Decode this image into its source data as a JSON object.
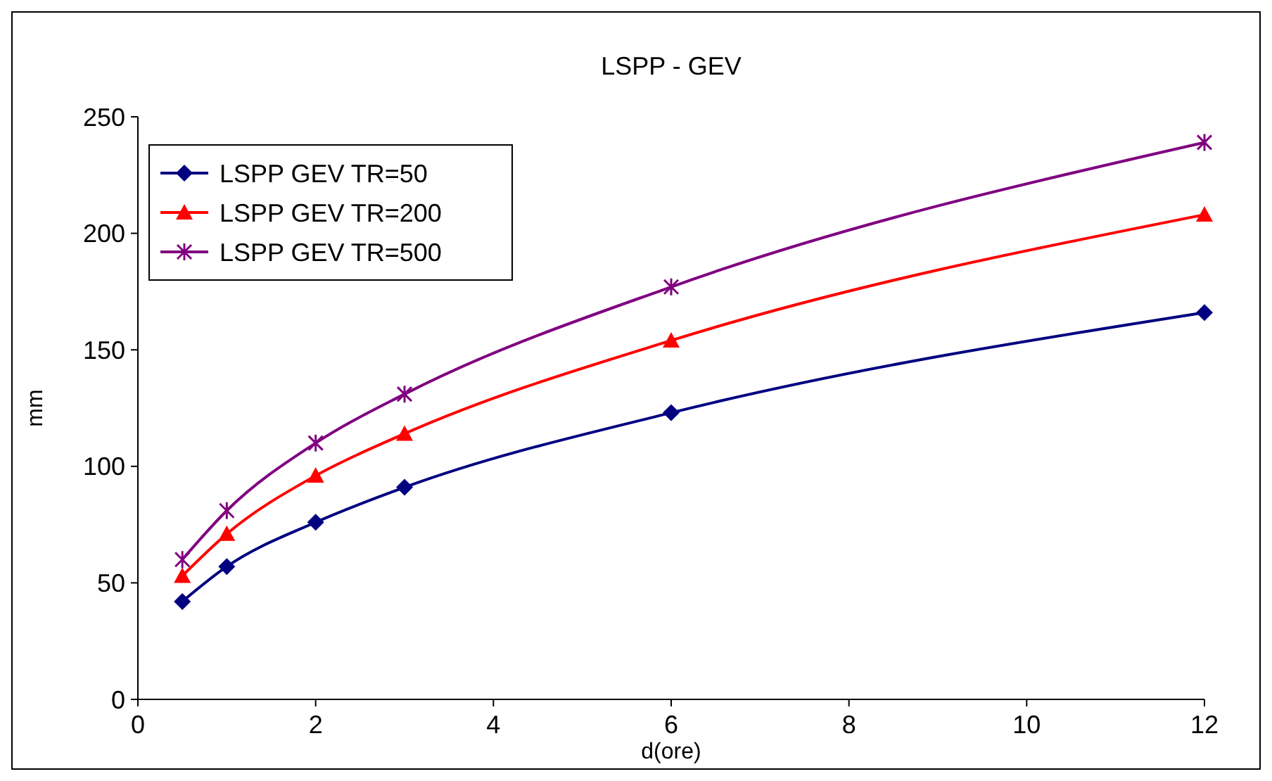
{
  "chart_data": {
    "type": "line",
    "title": "LSPP - GEV",
    "xlabel": "d(ore)",
    "ylabel": "mm",
    "x": [
      0.5,
      1,
      2,
      3,
      6,
      12
    ],
    "xlim": [
      0,
      12
    ],
    "xticks": [
      0,
      2,
      4,
      6,
      8,
      10,
      12
    ],
    "ylim": [
      0,
      250
    ],
    "yticks": [
      0,
      50,
      100,
      150,
      200,
      250
    ],
    "grid": false,
    "legend": "top left",
    "series": [
      {
        "name": "LSPP GEV TR=50",
        "color": "#000080",
        "marker": "diamond",
        "values": [
          42,
          57,
          76,
          91,
          123,
          166
        ]
      },
      {
        "name": "LSPP GEV TR=200",
        "color": "#ff0000",
        "marker": "triangle",
        "values": [
          53,
          71,
          96,
          114,
          154,
          208
        ]
      },
      {
        "name": "LSPP GEV TR=500",
        "color": "#800080",
        "marker": "cross",
        "values": [
          60,
          81,
          110,
          131,
          177,
          239
        ]
      }
    ]
  }
}
